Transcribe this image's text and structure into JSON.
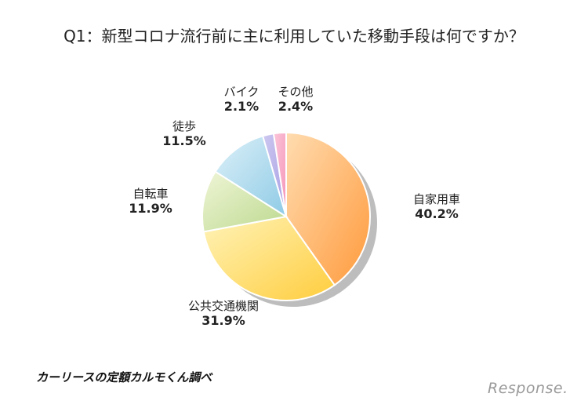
{
  "title": "Q1：新型コロナ流行前に主に利用していた移動手段は何ですか？",
  "source": "カーリースの定額カルモくん調べ",
  "logo": "Response.",
  "chart_data": {
    "type": "pie",
    "slices": [
      {
        "label": "自家用車",
        "value": 40.2,
        "pct": "40.2%",
        "color_from": "#ffdcb0",
        "color_to": "#ff9a3c"
      },
      {
        "label": "公共交通機関",
        "value": 31.9,
        "pct": "31.9%",
        "color_from": "#fff3b8",
        "color_to": "#ffcd3e"
      },
      {
        "label": "自転車",
        "value": 11.9,
        "pct": "11.9%",
        "color_from": "#eff5d6",
        "color_to": "#bcd98f"
      },
      {
        "label": "徒歩",
        "value": 11.5,
        "pct": "11.5%",
        "color_from": "#dcf0f8",
        "color_to": "#8fcbe6"
      },
      {
        "label": "バイク",
        "value": 2.1,
        "pct": "2.1%",
        "color_from": "#cdc8f0",
        "color_to": "#a89fe4"
      },
      {
        "label": "その他",
        "value": 2.4,
        "pct": "2.4%",
        "color_from": "#fbc5d8",
        "color_to": "#f594b8"
      }
    ]
  }
}
